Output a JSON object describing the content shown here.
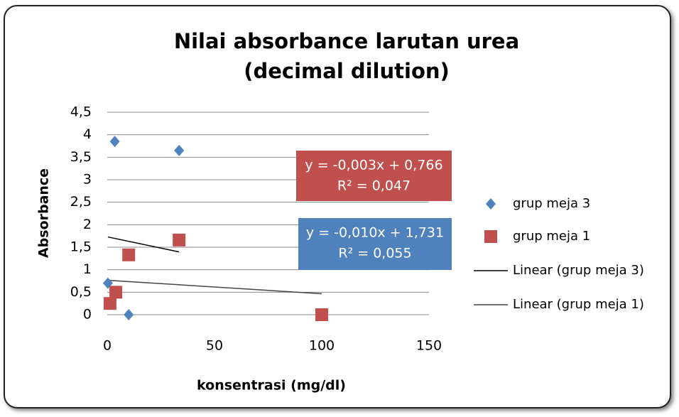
{
  "chart_data": {
    "type": "scatter",
    "title": [
      "Nilai absorbance larutan urea",
      "(decimal dilution)"
    ],
    "x_label": "konsentrasi (mg/dl)",
    "y_label": "Absorbance",
    "xlim": [
      0,
      150
    ],
    "xticks": [
      0,
      50,
      100,
      150
    ],
    "ylim": [
      0,
      4.5
    ],
    "yticks": [
      0,
      {
        "value": 0.5,
        "label": "0,5"
      },
      1,
      {
        "value": 1.5,
        "label": "1,5"
      },
      2,
      {
        "value": 2.5,
        "label": "2,5"
      },
      3,
      {
        "value": 3.5,
        "label": "3,5"
      },
      4,
      {
        "value": 4.5,
        "label": "4,5"
      }
    ],
    "grid": true,
    "legend": "right",
    "series": [
      {
        "name": "grup meja 3",
        "color": "#4f81bd",
        "marker": "diamond",
        "x": [
          0.3,
          3.5,
          10,
          33.5
        ],
        "values": [
          0.7,
          3.85,
          0,
          3.65
        ]
      },
      {
        "name": "grup meja 1",
        "color": "#c0504d",
        "marker": "square",
        "x": [
          1.3,
          4,
          10,
          33.5,
          100
        ],
        "values": [
          0.25,
          0.5,
          1.33,
          1.66,
          0
        ]
      }
    ],
    "trendlines": [
      {
        "name": "Linear (grup meja 3)",
        "color": "#000000",
        "slope": -0.01,
        "intercept": 1.731,
        "equation": "y = -0,010x + 1,731",
        "r2": "R² = 0,055"
      },
      {
        "name": "Linear (grup meja 1)",
        "color": "#444444",
        "slope": -0.003,
        "intercept": 0.766,
        "equation": "y = -0,003x + 0,766",
        "r2": "R² = 0,047"
      }
    ]
  }
}
